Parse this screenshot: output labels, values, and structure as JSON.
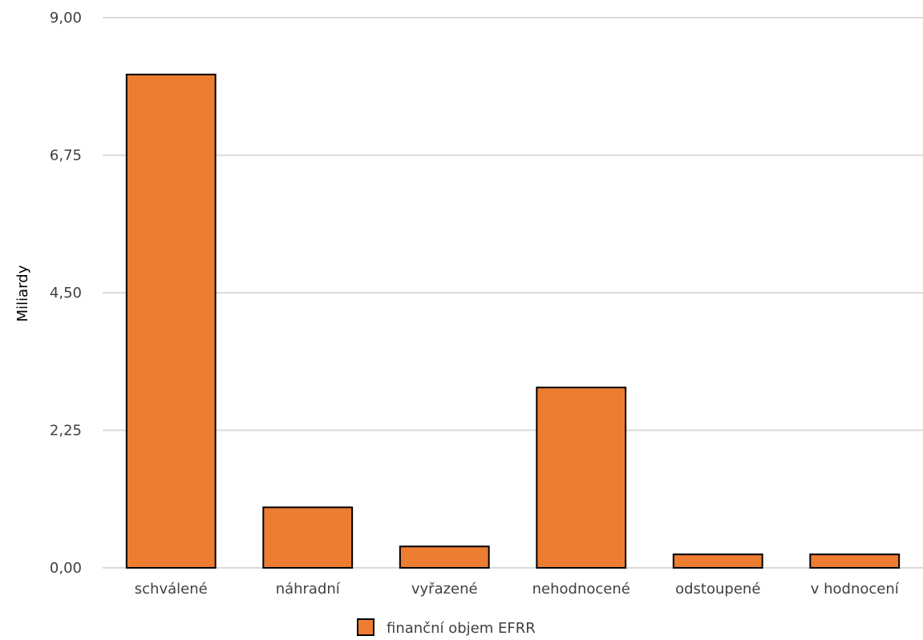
{
  "chart_data": {
    "type": "bar",
    "categories": [
      "schválené",
      "náhradní",
      "vyřazené",
      "nehodnocené",
      "odstoupené",
      "v hodnocení"
    ],
    "series": [
      {
        "name": "finanční objem EFRR",
        "values": [
          8.07,
          0.99,
          0.35,
          2.95,
          0.22,
          0.22
        ]
      }
    ],
    "y_ticks": [
      "0,00",
      "2,25",
      "4,50",
      "6,75",
      "9,00"
    ],
    "ylim": [
      0,
      9
    ],
    "ylabel": "Miliardy",
    "xlabel": "",
    "title": "",
    "grid": true,
    "legend_position": "bottom",
    "colors": {
      "bar": "#ED7D31",
      "bar_stroke": "#000000",
      "grid": "#D9D9D9"
    }
  }
}
